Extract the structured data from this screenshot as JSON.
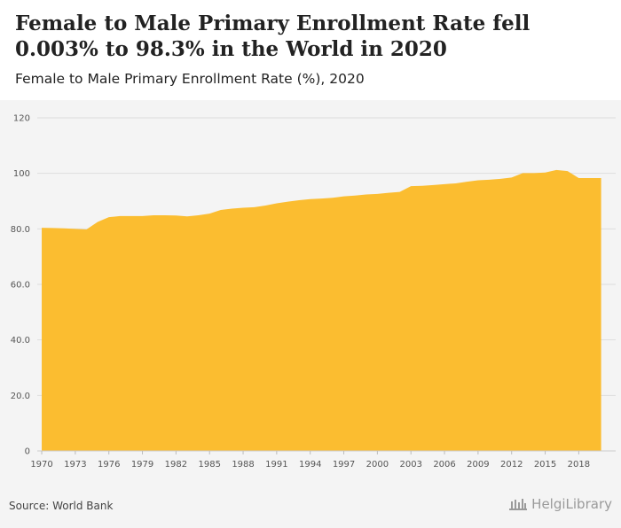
{
  "header": {
    "title": "Female to Male Primary Enrollment Rate fell 0.003% to 98.3% in the World in 2020",
    "subtitle": "Female to Male Primary Enrollment Rate (%), 2020"
  },
  "footer": {
    "source": "Source: World Bank",
    "brand": "HelgiLibrary"
  },
  "colors": {
    "area": "#fbbd30",
    "grid": "#dddddd",
    "background": "#f4f4f4"
  },
  "chart_data": {
    "type": "area",
    "title": "Female to Male Primary Enrollment Rate (%), 2020",
    "xlabel": "",
    "ylabel": "",
    "ylim": [
      0,
      120
    ],
    "y_ticks": [
      0,
      20.0,
      40.0,
      60.0,
      80.0,
      100,
      120
    ],
    "y_tick_labels": [
      "0",
      "20.0",
      "40.0",
      "60.0",
      "80.0",
      "100",
      "120"
    ],
    "x_tick_labels": [
      "1970",
      "1973",
      "1976",
      "1979",
      "1982",
      "1985",
      "1988",
      "1991",
      "1994",
      "1997",
      "2000",
      "2003",
      "2006",
      "2009",
      "2012",
      "2015",
      "2018"
    ],
    "grid": true,
    "series": [
      {
        "name": "Female to Male Primary Enrollment Rate (%)",
        "x": [
          1970,
          1971,
          1972,
          1973,
          1974,
          1975,
          1976,
          1977,
          1978,
          1979,
          1980,
          1981,
          1982,
          1983,
          1984,
          1985,
          1986,
          1987,
          1988,
          1989,
          1990,
          1991,
          1992,
          1993,
          1994,
          1995,
          1996,
          1997,
          1998,
          1999,
          2000,
          2001,
          2002,
          2003,
          2004,
          2005,
          2006,
          2007,
          2008,
          2009,
          2010,
          2011,
          2012,
          2013,
          2014,
          2015,
          2016,
          2017,
          2018,
          2019,
          2020
        ],
        "values": [
          80.4,
          80.3,
          80.2,
          80.0,
          79.8,
          82.5,
          84.2,
          84.6,
          84.6,
          84.6,
          84.9,
          84.9,
          84.8,
          84.5,
          84.9,
          85.5,
          86.8,
          87.3,
          87.6,
          87.8,
          88.4,
          89.2,
          89.8,
          90.3,
          90.7,
          90.9,
          91.2,
          91.7,
          92.0,
          92.4,
          92.6,
          93.0,
          93.3,
          95.4,
          95.5,
          95.8,
          96.1,
          96.4,
          97.0,
          97.5,
          97.7,
          98.0,
          98.5,
          100.1,
          100.1,
          100.3,
          101.2,
          100.8,
          98.3,
          98.3,
          98.3
        ]
      }
    ]
  }
}
